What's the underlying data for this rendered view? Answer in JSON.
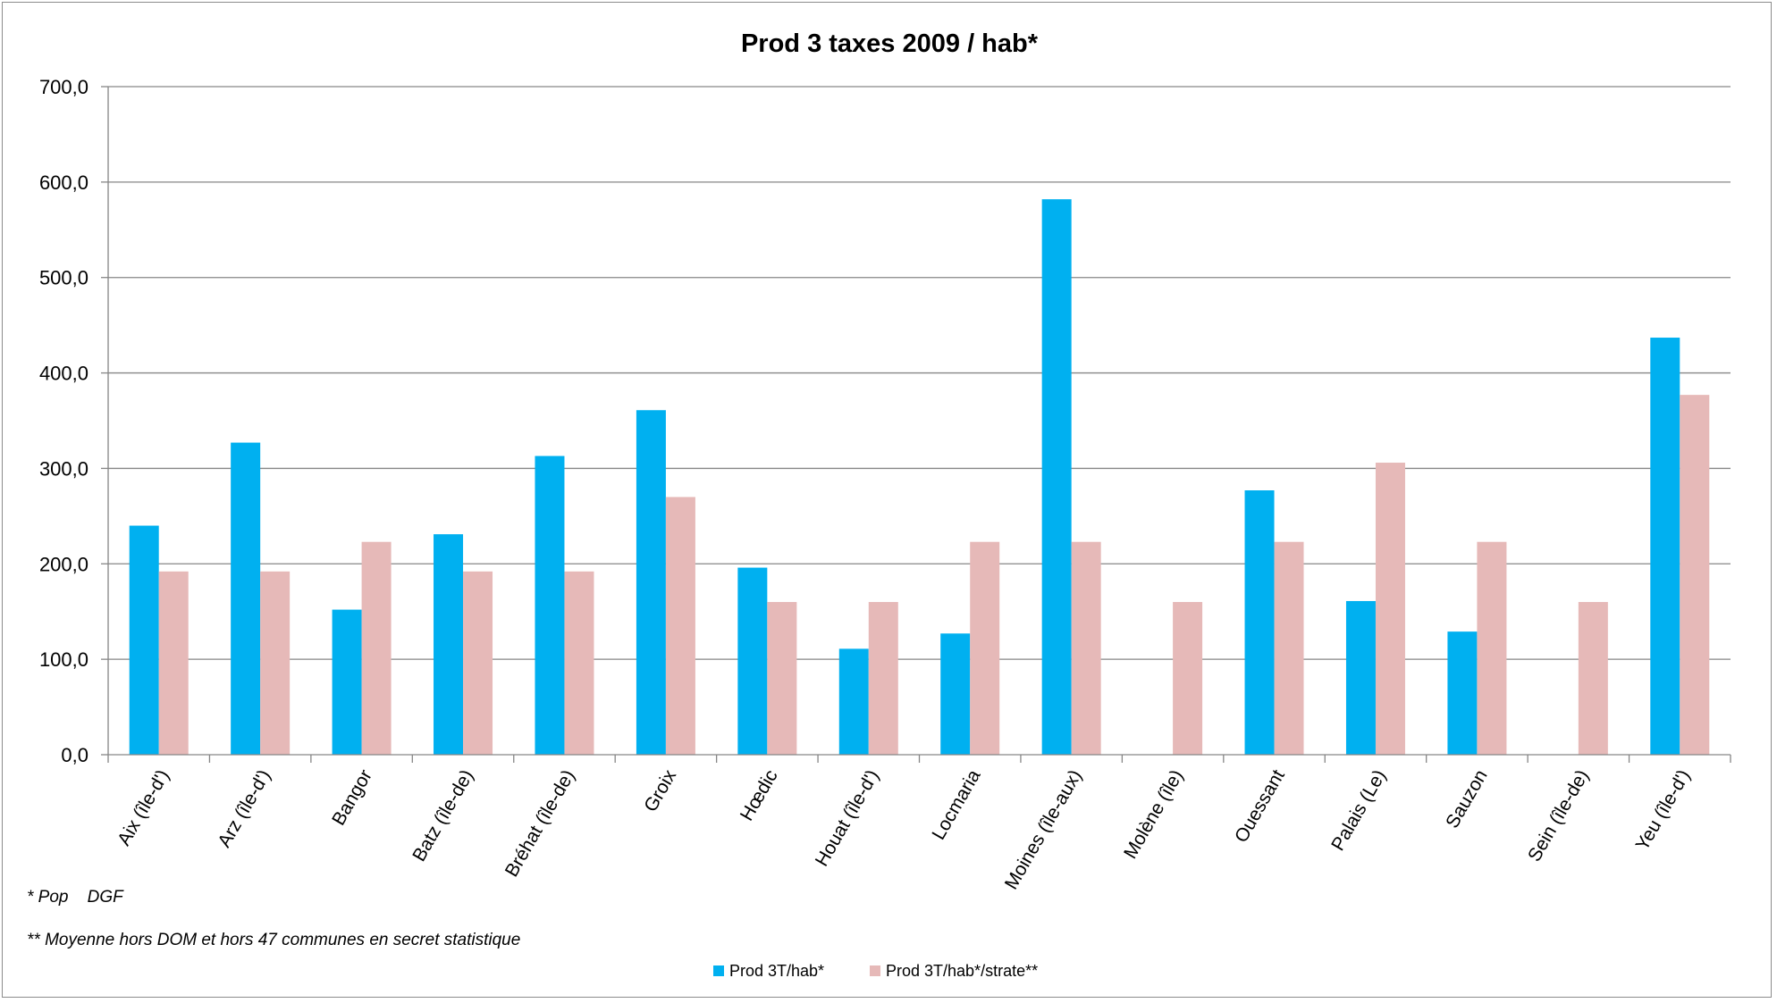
{
  "chart_data": {
    "type": "bar",
    "title": "Prod 3 taxes 2009 / hab*",
    "xlabel": "",
    "ylabel": "",
    "ylim": [
      0,
      700
    ],
    "y_ticks": [
      "0,0",
      "100,0",
      "200,0",
      "300,0",
      "400,0",
      "500,0",
      "600,0",
      "700,0"
    ],
    "grid": true,
    "legend_position": "bottom",
    "categories": [
      "Aix (île-d')",
      "Arz (île-d')",
      "Bangor",
      "Batz (île-de)",
      "Bréhat (île-de)",
      "Groix",
      "Hœdic",
      "Houat (île-d')",
      "Locmaria",
      "Moines (île-aux)",
      "Molène (île)",
      "Ouessant",
      "Palais (Le)",
      "Sauzon",
      "Sein (île-de)",
      "Yeu (île-d')"
    ],
    "series": [
      {
        "name": "Prod 3T/hab*",
        "color": "#00b0f0",
        "values": [
          240,
          327,
          152,
          231,
          313,
          361,
          196,
          111,
          127,
          582,
          null,
          277,
          161,
          129,
          null,
          437
        ]
      },
      {
        "name": "Prod 3T/hab*/strate**",
        "color": "#e6b9b8",
        "values": [
          192,
          192,
          223,
          192,
          192,
          270,
          160,
          160,
          223,
          223,
          160,
          223,
          306,
          223,
          160,
          377
        ]
      }
    ],
    "notes": [
      "* Pop    DGF",
      "** Moyenne hors DOM et hors 47 communes en secret statistique"
    ]
  }
}
